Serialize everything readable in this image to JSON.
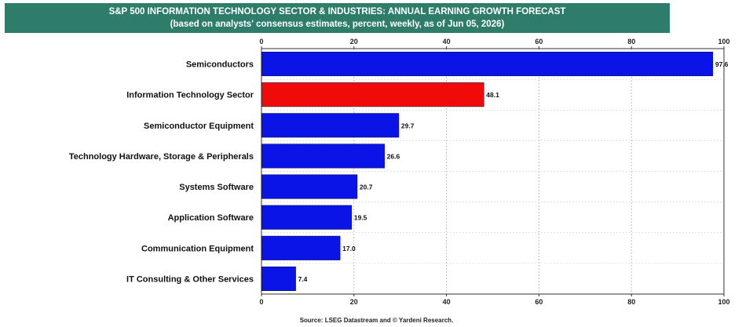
{
  "title": "S&P 500 INFORMATION TECHNOLOGY SECTOR & INDUSTRIES: ANNUAL EARNING GROWTH FORECAST",
  "subtitle": "(based on analysts' consensus estimates, percent, weekly, as of Jun 05, 2026)",
  "source": "Source: LSEG Datastream and © Yardeni Research.",
  "colors": {
    "banner": "#2e7d6b",
    "bar": "#0a14e6",
    "highlight": "#f00a0a"
  },
  "chart_data": {
    "type": "bar",
    "orientation": "horizontal",
    "categories": [
      "Semiconductors",
      "Information Technology Sector",
      "Semiconductor Equipment",
      "Technology Hardware, Storage & Peripherals",
      "Systems Software",
      "Application Software",
      "Communication Equipment",
      "IT Consulting & Other Services"
    ],
    "values": [
      97.6,
      48.1,
      29.7,
      26.6,
      20.7,
      19.5,
      17.0,
      7.4
    ],
    "value_labels": [
      "97.6",
      "48.1",
      "29.7",
      "26.6",
      "20.7",
      "19.5",
      "17.0",
      "7.4"
    ],
    "highlight_index": 1,
    "xlim": [
      0,
      100
    ],
    "xticks": [
      0,
      20,
      40,
      60,
      80,
      100
    ],
    "xtick_labels": [
      "0",
      "20",
      "40",
      "60",
      "80",
      "100"
    ],
    "grid": true
  }
}
